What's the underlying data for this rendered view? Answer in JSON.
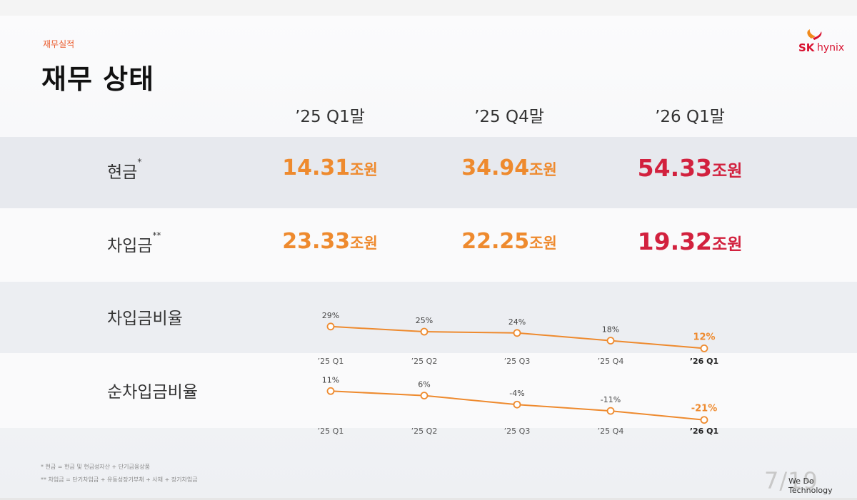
{
  "header": {
    "subtitle": "재무실적",
    "title": "재무 상태"
  },
  "logo": {
    "sk": "SK",
    "hynix": "hynix"
  },
  "columns": [
    "’25 Q1말",
    "’25 Q4말",
    "’26 Q1말"
  ],
  "rows": [
    {
      "label": "현금",
      "mark": "*",
      "values": [
        {
          "num": "14.31",
          "unit": "조원"
        },
        {
          "num": "34.94",
          "unit": "조원"
        },
        {
          "num": "54.33",
          "unit": "조원"
        }
      ]
    },
    {
      "label": "차입금",
      "mark": "**",
      "values": [
        {
          "num": "23.33",
          "unit": "조원"
        },
        {
          "num": "22.25",
          "unit": "조원"
        },
        {
          "num": "19.32",
          "unit": "조원"
        }
      ]
    }
  ],
  "chart_data": [
    {
      "type": "line",
      "label": "차입금비율",
      "categories": [
        "’25 Q1",
        "’25 Q2",
        "’25 Q3",
        "’25 Q4",
        "’26 Q1"
      ],
      "values": [
        29,
        25,
        24,
        18,
        12
      ],
      "value_labels": [
        "29%",
        "25%",
        "24%",
        "18%",
        "12%"
      ],
      "ylim": [
        10,
        30
      ]
    },
    {
      "type": "line",
      "label": "순차입금비율",
      "categories": [
        "’25 Q1",
        "’25 Q2",
        "’25 Q3",
        "’25 Q4",
        "’26 Q1"
      ],
      "values": [
        11,
        6,
        -4,
        -11,
        -21
      ],
      "value_labels": [
        "11%",
        "6%",
        "-4%",
        "-11%",
        "-21%"
      ],
      "ylim": [
        -22,
        12
      ]
    }
  ],
  "colors": {
    "accent": "#ee8a2e",
    "highlight": "#d2213e"
  },
  "footnotes": [
    "* 현금 = 현금 및 현금성자산 + 단기금융상품",
    "** 차입금 = 단기차입금 + 유동성장기부채 + 사채 + 장기차입금"
  ],
  "footer": {
    "page": "7/19",
    "tagline": "We Do Technology"
  }
}
